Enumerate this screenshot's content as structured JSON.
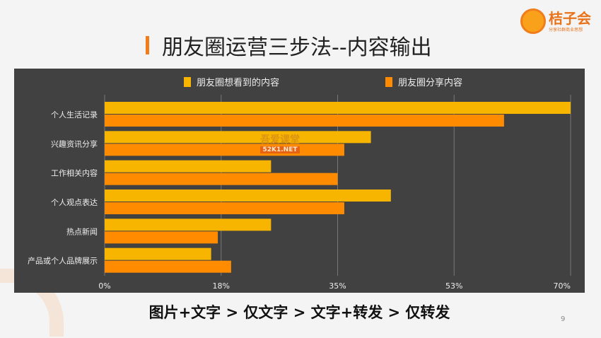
{
  "title": "朋友圈运营三步法--内容输出",
  "logo": {
    "name": "桔子会",
    "tagline": "分享社群商业思想"
  },
  "watermark": {
    "line1": "吾爱课堂",
    "line2": "52K1.NET"
  },
  "bottom_text": "图片+文字 > 仅文字 > 文字+转发 > 仅转发",
  "page_number": "9",
  "colors": {
    "series1": "#f7b500",
    "series2": "#ff8c00",
    "panel": "#414141"
  },
  "chart_data": {
    "type": "bar",
    "orientation": "horizontal",
    "categories": [
      "个人生活记录",
      "兴趣资讯分享",
      "工作相关内容",
      "个人观点表达",
      "热点新闻",
      "产品或个人品牌展示"
    ],
    "series": [
      {
        "name": "朋友圈想看到的内容",
        "values": [
          70,
          40,
          25,
          43,
          25,
          16
        ]
      },
      {
        "name": "朋友圈分享内容",
        "values": [
          60,
          36,
          35,
          36,
          17,
          19
        ]
      }
    ],
    "xlim": [
      0,
      70
    ],
    "xticks": [
      "0%",
      "18%",
      "35%",
      "53%",
      "70%"
    ],
    "xtick_values": [
      0,
      17.5,
      35,
      52.5,
      70
    ],
    "grid": true,
    "legend": "top"
  }
}
